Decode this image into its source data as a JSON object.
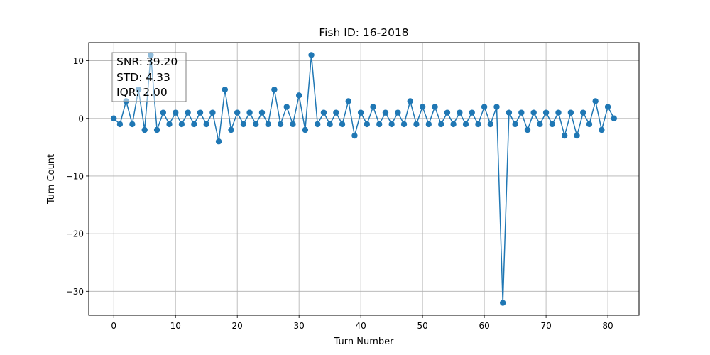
{
  "chart_data": {
    "type": "line",
    "title": "Fish ID: 16-2018",
    "xlabel": "Turn Number",
    "ylabel": "Turn Count",
    "xlim": [
      -4.05,
      85.05
    ],
    "ylim": [
      -34.15,
      13.15
    ],
    "x_ticks": [
      0,
      10,
      20,
      30,
      40,
      50,
      60,
      70,
      80
    ],
    "x_tick_labels": [
      "0",
      "10",
      "20",
      "30",
      "40",
      "50",
      "60",
      "70",
      "80"
    ],
    "y_ticks": [
      10,
      0,
      -10,
      -20,
      -30
    ],
    "y_tick_labels": [
      "10",
      "0",
      "−10",
      "−20",
      "−30"
    ],
    "grid": true,
    "marker": "circle",
    "color": "#1f77b4",
    "x": [
      0,
      1,
      2,
      3,
      4,
      5,
      6,
      7,
      8,
      9,
      10,
      11,
      12,
      13,
      14,
      15,
      16,
      17,
      18,
      19,
      20,
      21,
      22,
      23,
      24,
      25,
      26,
      27,
      28,
      29,
      30,
      31,
      32,
      33,
      34,
      35,
      36,
      37,
      38,
      39,
      40,
      41,
      42,
      43,
      44,
      45,
      46,
      47,
      48,
      49,
      50,
      51,
      52,
      53,
      54,
      55,
      56,
      57,
      58,
      59,
      60,
      61,
      62,
      63,
      64,
      65,
      66,
      67,
      68,
      69,
      70,
      71,
      72,
      73,
      74,
      75,
      76,
      77,
      78,
      79,
      80,
      81
    ],
    "y": [
      0,
      -1,
      3,
      -1,
      5,
      -2,
      11,
      -2,
      1,
      -1,
      1,
      -1,
      1,
      -1,
      1,
      -1,
      1,
      -4,
      5,
      -2,
      1,
      -1,
      1,
      -1,
      1,
      -1,
      5,
      -1,
      2,
      -1,
      4,
      -2,
      11,
      -1,
      1,
      -1,
      1,
      -1,
      3,
      -3,
      1,
      -1,
      2,
      -1,
      1,
      -1,
      1,
      -1,
      3,
      -1,
      2,
      -1,
      2,
      -1,
      1,
      -1,
      1,
      -1,
      1,
      -1,
      2,
      -1,
      2,
      -32,
      1,
      -1,
      1,
      -2,
      1,
      -1,
      1,
      -1,
      1,
      -3,
      1,
      -3,
      1,
      -1,
      3,
      -2,
      2,
      0
    ],
    "annotation": {
      "lines": [
        "SNR: 39.20",
        "STD: 4.33",
        "IQR: 2.00"
      ],
      "placement": "top-left"
    }
  }
}
